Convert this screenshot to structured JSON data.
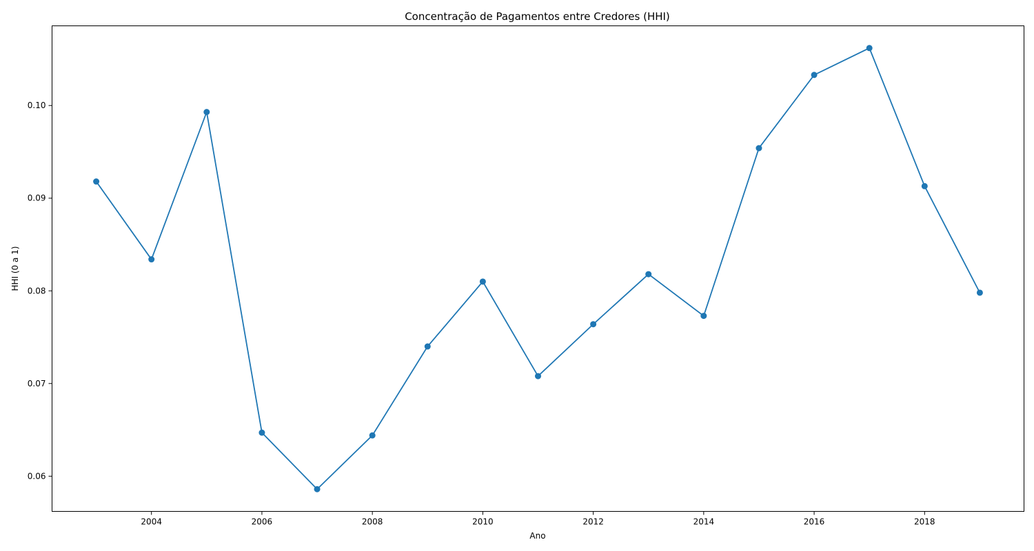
{
  "chart_data": {
    "type": "line",
    "title": "Concentração de Pagamentos entre Credores (HHI)",
    "xlabel": "Ano",
    "ylabel": "HHI (0 a 1)",
    "x": [
      2003,
      2004,
      2005,
      2006,
      2007,
      2008,
      2009,
      2010,
      2011,
      2012,
      2013,
      2014,
      2015,
      2016,
      2017,
      2018,
      2019
    ],
    "series": [
      {
        "values": [
          0.0918,
          0.0834,
          0.0993,
          0.0647,
          0.0586,
          0.0644,
          0.074,
          0.081,
          0.0708,
          0.0764,
          0.0818,
          0.0773,
          0.0954,
          0.1033,
          0.1062,
          0.0913,
          0.0798
        ],
        "color": "#1f77b4",
        "marker": "circle"
      }
    ],
    "xlim": [
      2002.2,
      2019.8
    ],
    "ylim": [
      0.0562,
      0.1086
    ],
    "xticks": [
      "2004",
      "2006",
      "2008",
      "2010",
      "2012",
      "2014",
      "2016",
      "2018"
    ],
    "yticks": [
      "0.06",
      "0.07",
      "0.08",
      "0.09",
      "0.10"
    ],
    "grid": false,
    "legend": "none"
  }
}
